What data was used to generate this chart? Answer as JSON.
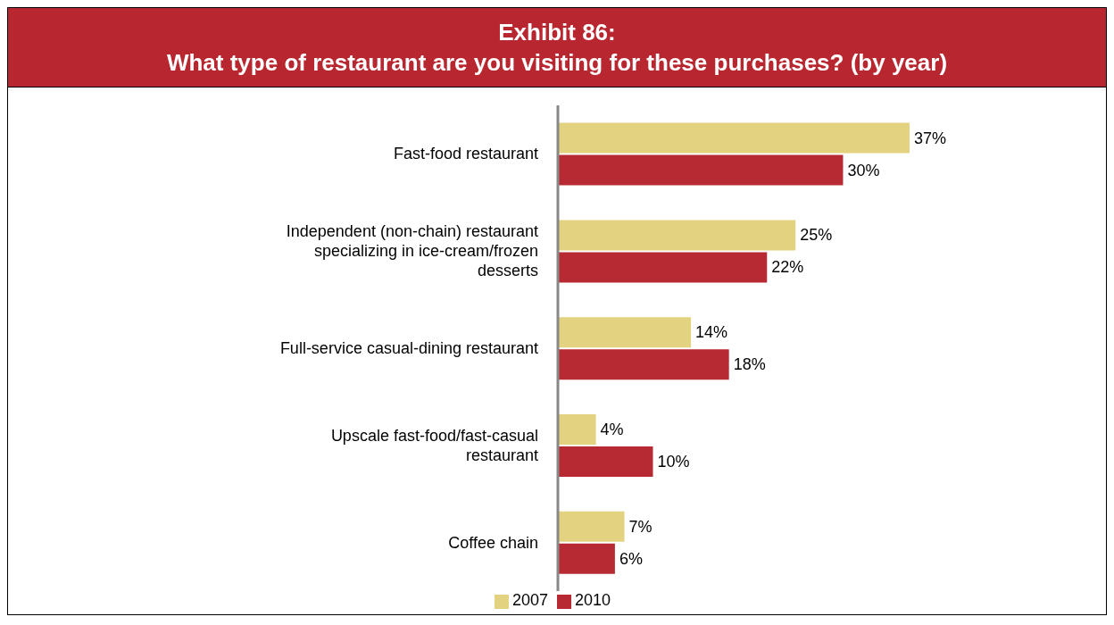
{
  "chart_data": {
    "type": "bar",
    "orientation": "horizontal",
    "title": "Exhibit 86:\nWhat type of restaurant are you visiting for these purchases? (by year)",
    "categories": [
      "Fast-food restaurant",
      "Independent (non-chain) restaurant specializing in ice-cream/frozen desserts",
      "Full-service casual-dining restaurant",
      "Upscale fast-food/fast-casual restaurant",
      "Coffee chain"
    ],
    "series": [
      {
        "name": "2007",
        "color": "#e3d27f",
        "values": [
          37,
          25,
          14,
          4,
          7
        ],
        "value_labels": [
          "37%",
          "25%",
          "14%",
          "4%",
          "7%"
        ]
      },
      {
        "name": "2010",
        "color": "#b72a33",
        "values": [
          30,
          22,
          18,
          10,
          6
        ],
        "value_labels": [
          "30%",
          "22%",
          "18%",
          "10%",
          "6%"
        ]
      }
    ],
    "legend": "bottom",
    "grid": false
  }
}
